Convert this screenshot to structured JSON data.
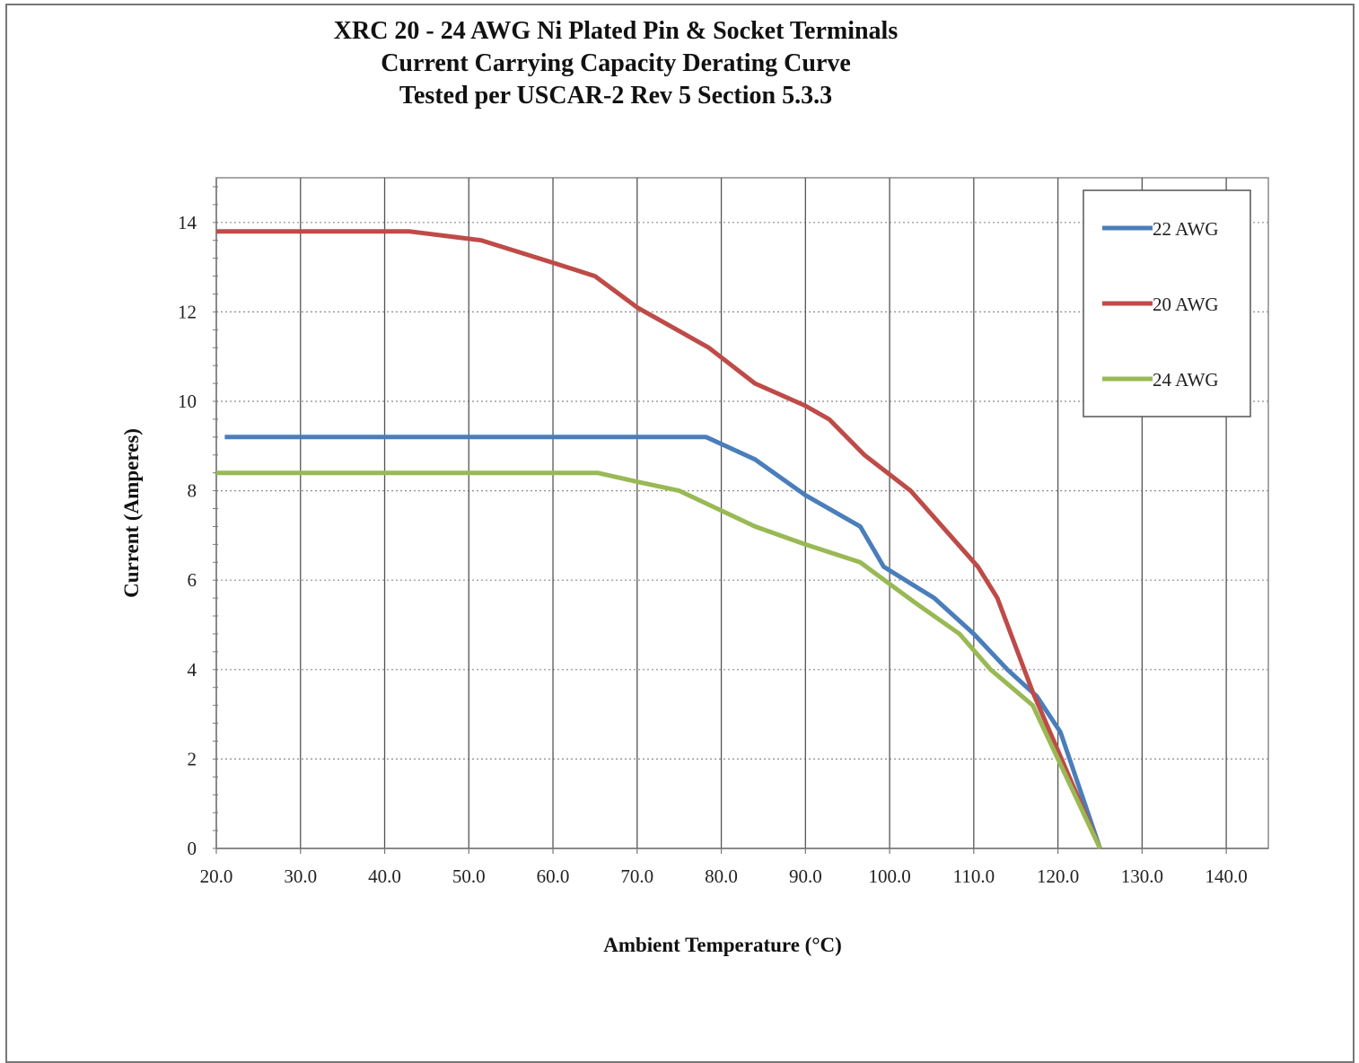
{
  "chart_data": {
    "type": "line",
    "title": "XRC 20 - 24 AWG Ni Plated Pin & Socket Terminals",
    "subtitle": [
      "Current Carrying Capacity Derating Curve",
      "Tested per USCAR-2 Rev 5 Section 5.3.3"
    ],
    "xlabel": "Ambient Temperature (°C)",
    "ylabel": "Current (Amperes)",
    "xlim": [
      20,
      145
    ],
    "ylim": [
      0,
      15
    ],
    "x_ticks": [
      "20.0",
      "30.0",
      "40.0",
      "50.0",
      "60.0",
      "70.0",
      "80.0",
      "90.0",
      "100.0",
      "110.0",
      "120.0",
      "130.0",
      "140.0"
    ],
    "y_ticks": [
      "0",
      "2",
      "4",
      "6",
      "8",
      "10",
      "12",
      "14"
    ],
    "grid": "vertical solid at major x ticks, horizontal dotted at major y ticks",
    "legend_position": "top-right",
    "series": [
      {
        "name": "22 AWG",
        "color": "#4a7ebb",
        "points": [
          [
            21,
            9.2
          ],
          [
            30,
            9.2
          ],
          [
            40,
            9.2
          ],
          [
            50,
            9.2
          ],
          [
            60,
            9.2
          ],
          [
            70,
            9.2
          ],
          [
            78.2,
            9.2
          ],
          [
            84,
            8.7
          ],
          [
            90,
            7.9
          ],
          [
            96.5,
            7.2
          ],
          [
            99.3,
            6.3
          ],
          [
            105.3,
            5.6
          ],
          [
            110,
            4.8
          ],
          [
            114,
            4.0
          ],
          [
            117.5,
            3.4
          ],
          [
            120.3,
            2.6
          ],
          [
            125,
            0
          ]
        ]
      },
      {
        "name": "20 AWG",
        "color": "#be4b48",
        "points": [
          [
            20,
            13.8
          ],
          [
            30,
            13.8
          ],
          [
            43,
            13.8
          ],
          [
            51.5,
            13.6
          ],
          [
            60,
            13.1
          ],
          [
            65,
            12.8
          ],
          [
            70,
            12.1
          ],
          [
            78.5,
            11.2
          ],
          [
            84,
            10.4
          ],
          [
            90,
            9.9
          ],
          [
            92.8,
            9.6
          ],
          [
            97,
            8.8
          ],
          [
            102.5,
            8.0
          ],
          [
            110.5,
            6.3
          ],
          [
            112.8,
            5.6
          ],
          [
            117,
            3.5
          ],
          [
            125,
            0
          ]
        ]
      },
      {
        "name": "24 AWG",
        "color": "#98b954",
        "points": [
          [
            20,
            8.4
          ],
          [
            30,
            8.4
          ],
          [
            40,
            8.4
          ],
          [
            50,
            8.4
          ],
          [
            60,
            8.4
          ],
          [
            65.3,
            8.4
          ],
          [
            70,
            8.2
          ],
          [
            75,
            8.0
          ],
          [
            84,
            7.2
          ],
          [
            90,
            6.8
          ],
          [
            96.5,
            6.4
          ],
          [
            103,
            5.5
          ],
          [
            108.3,
            4.8
          ],
          [
            112,
            4.0
          ],
          [
            117,
            3.2
          ],
          [
            125,
            0
          ]
        ]
      }
    ]
  }
}
